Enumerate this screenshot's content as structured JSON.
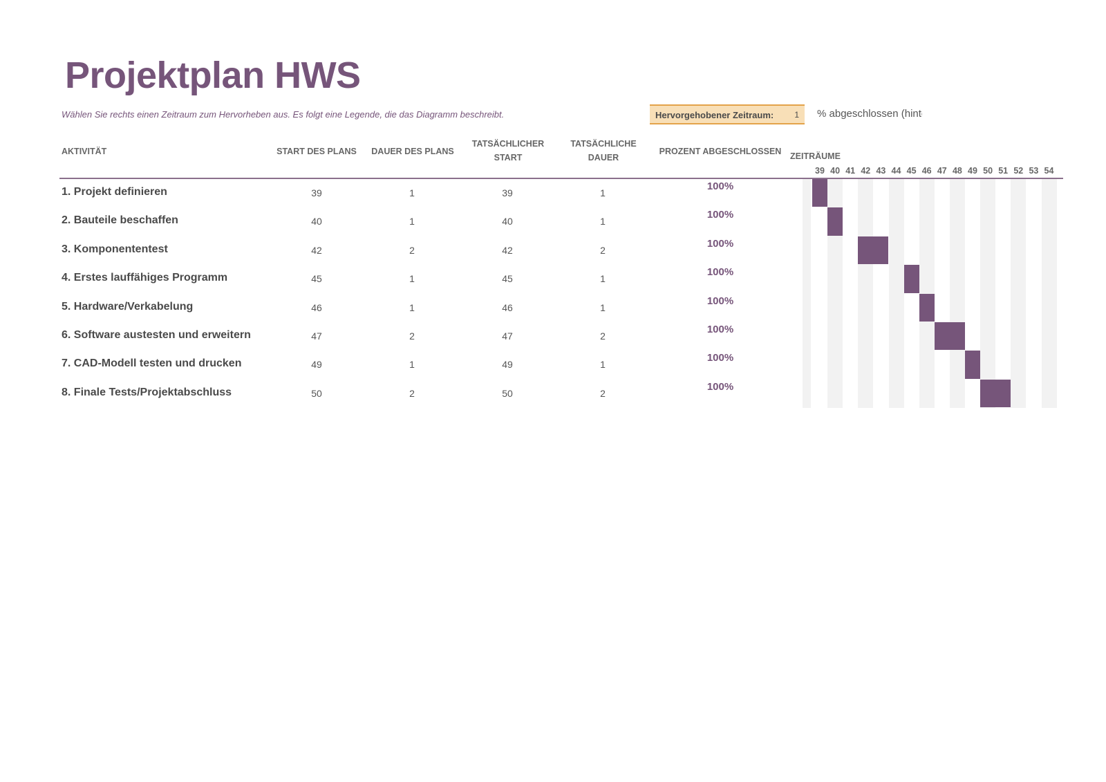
{
  "title": "Projektplan HWS",
  "subtitle": "Wählen Sie rechts einen Zeitraum zum Hervorheben aus.  Es folgt eine Legende, die das Diagramm beschreibt.",
  "highlight": {
    "label": "Hervorgehobener Zeitraum:",
    "value": "1"
  },
  "legend": "% abgeschlossen (hinte",
  "headers": {
    "activity": "AKTIVITÄT",
    "plan_start": "START DES PLANS",
    "plan_duration": "DAUER DES PLANS",
    "actual_start_1": "TATSÄCHLICHER",
    "actual_start_2": "START",
    "actual_duration_1": "TATSÄCHLICHE",
    "actual_duration_2": "DAUER",
    "percent": "PROZENT ABGESCHLOSSEN",
    "periods": "ZEITRÄUME"
  },
  "periods": [
    "39",
    "40",
    "41",
    "42",
    "43",
    "44",
    "45",
    "46",
    "47",
    "48",
    "49",
    "50",
    "51",
    "52",
    "53",
    "54"
  ],
  "colors": {
    "accent": "#76557a",
    "stripe": "#f2f2f2"
  },
  "rows": [
    {
      "activity": "1. Projekt definieren",
      "plan_start": "39",
      "plan_duration": "1",
      "actual_start": "39",
      "actual_duration": "1",
      "percent": "100%"
    },
    {
      "activity": "2. Bauteile beschaffen",
      "plan_start": "40",
      "plan_duration": "1",
      "actual_start": "40",
      "actual_duration": "1",
      "percent": "100%"
    },
    {
      "activity": "3. Komponententest",
      "plan_start": "42",
      "plan_duration": "2",
      "actual_start": "42",
      "actual_duration": "2",
      "percent": "100%"
    },
    {
      "activity": "4. Erstes lauffähiges Programm",
      "plan_start": "45",
      "plan_duration": "1",
      "actual_start": "45",
      "actual_duration": "1",
      "percent": "100%"
    },
    {
      "activity": "5. Hardware/Verkabelung",
      "plan_start": "46",
      "plan_duration": "1",
      "actual_start": "46",
      "actual_duration": "1",
      "percent": "100%"
    },
    {
      "activity": "6. Software austesten und erweitern",
      "plan_start": "47",
      "plan_duration": "2",
      "actual_start": "47",
      "actual_duration": "2",
      "percent": "100%"
    },
    {
      "activity": "7. CAD-Modell testen und drucken",
      "plan_start": "49",
      "plan_duration": "1",
      "actual_start": "49",
      "actual_duration": "1",
      "percent": "100%"
    },
    {
      "activity": "8. Finale Tests/Projektabschluss",
      "plan_start": "50",
      "plan_duration": "2",
      "actual_start": "50",
      "actual_duration": "2",
      "percent": "100%"
    }
  ]
}
